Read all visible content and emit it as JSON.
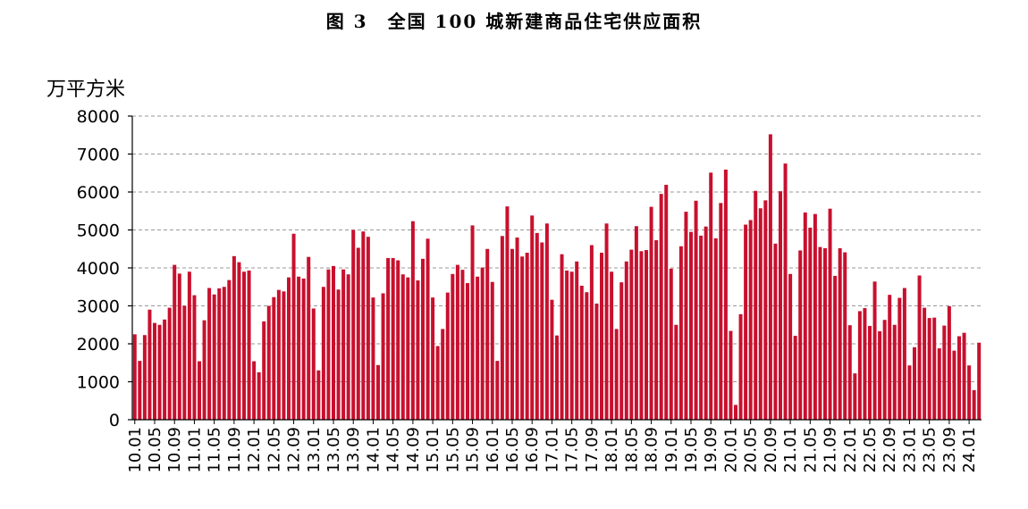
{
  "title": "图 3　全国 100 城新建商品住宅供应面积",
  "colors": {
    "bar": "#C8102E",
    "grid": "#999999",
    "axis": "#000000"
  },
  "chart_data": {
    "type": "bar",
    "title": "图 3　全国 100 城新建商品住宅供应面积",
    "ylabel": "万平方米",
    "xlabel": "",
    "ylim": [
      0,
      8000
    ],
    "yticks": [
      0,
      1000,
      2000,
      3000,
      4000,
      5000,
      6000,
      7000,
      8000
    ],
    "grid": "horizontal dashed",
    "x_tick_labels": [
      "10.01",
      "10.05",
      "10.09",
      "11.01",
      "11.05",
      "11.09",
      "12.01",
      "12.05",
      "12.09",
      "13.01",
      "13.05",
      "13.09",
      "14.01",
      "14.05",
      "14.09",
      "15.01",
      "15.05",
      "15.09",
      "16.01",
      "16.05",
      "16.09",
      "17.01",
      "17.05",
      "17.09",
      "18.01",
      "18.05",
      "18.09",
      "19.01",
      "19.05",
      "19.09",
      "20.01",
      "20.05",
      "20.09",
      "21.01",
      "21.05",
      "21.09",
      "22.01",
      "22.05",
      "22.09",
      "23.01",
      "23.05",
      "23.09",
      "24.01"
    ],
    "categories": [
      "10.01",
      "10.02",
      "10.03",
      "10.04",
      "10.05",
      "10.06",
      "10.07",
      "10.08",
      "10.09",
      "10.10",
      "10.11",
      "10.12",
      "11.01",
      "11.02",
      "11.03",
      "11.04",
      "11.05",
      "11.06",
      "11.07",
      "11.08",
      "11.09",
      "11.10",
      "11.11",
      "11.12",
      "12.01",
      "12.02",
      "12.03",
      "12.04",
      "12.05",
      "12.06",
      "12.07",
      "12.08",
      "12.09",
      "12.10",
      "12.11",
      "12.12",
      "13.01",
      "13.02",
      "13.03",
      "13.04",
      "13.05",
      "13.06",
      "13.07",
      "13.08",
      "13.09",
      "13.10",
      "13.11",
      "13.12",
      "14.01",
      "14.02",
      "14.03",
      "14.04",
      "14.05",
      "14.06",
      "14.07",
      "14.08",
      "14.09",
      "14.10",
      "14.11",
      "14.12",
      "15.01",
      "15.02",
      "15.03",
      "15.04",
      "15.05",
      "15.06",
      "15.07",
      "15.08",
      "15.09",
      "15.10",
      "15.11",
      "15.12",
      "16.01",
      "16.02",
      "16.03",
      "16.04",
      "16.05",
      "16.06",
      "16.07",
      "16.08",
      "16.09",
      "16.10",
      "16.11",
      "16.12",
      "17.01",
      "17.02",
      "17.03",
      "17.04",
      "17.05",
      "17.06",
      "17.07",
      "17.08",
      "17.09",
      "17.10",
      "17.11",
      "17.12",
      "18.01",
      "18.02",
      "18.03",
      "18.04",
      "18.05",
      "18.06",
      "18.07",
      "18.08",
      "18.09",
      "18.10",
      "18.11",
      "18.12",
      "19.01",
      "19.02",
      "19.03",
      "19.04",
      "19.05",
      "19.06",
      "19.07",
      "19.08",
      "19.09",
      "19.10",
      "19.11",
      "19.12",
      "20.01",
      "20.02",
      "20.03",
      "20.04",
      "20.05",
      "20.06",
      "20.07",
      "20.08",
      "20.09",
      "20.10",
      "20.11",
      "20.12",
      "21.01",
      "21.02",
      "21.03",
      "21.04",
      "21.05",
      "21.06",
      "21.07",
      "21.08",
      "21.09",
      "21.10",
      "21.11",
      "21.12",
      "22.01",
      "22.02",
      "22.03",
      "22.04",
      "22.05",
      "22.06",
      "22.07",
      "22.08",
      "22.09",
      "22.10",
      "22.11",
      "22.12",
      "23.01",
      "23.02",
      "23.03",
      "23.04",
      "23.05",
      "23.06",
      "23.07",
      "23.08",
      "23.09",
      "23.10",
      "23.11",
      "23.12",
      "24.01",
      "24.02",
      "24.03"
    ],
    "values": [
      2250,
      1550,
      2230,
      2900,
      2550,
      2500,
      2640,
      2950,
      4080,
      3850,
      3000,
      3900,
      3280,
      1540,
      2620,
      3470,
      3300,
      3460,
      3500,
      3680,
      4310,
      4150,
      3900,
      3930,
      1540,
      1250,
      2590,
      3000,
      3230,
      3420,
      3380,
      3750,
      4900,
      3770,
      3720,
      4290,
      2930,
      1300,
      3500,
      3960,
      4050,
      3430,
      3960,
      3830,
      5000,
      4530,
      4960,
      4820,
      3220,
      1440,
      3330,
      4260,
      4260,
      4200,
      3830,
      3750,
      5230,
      3670,
      4240,
      4770,
      3220,
      1940,
      2390,
      3350,
      3840,
      4080,
      3950,
      3600,
      5120,
      3770,
      4010,
      4500,
      3630,
      1550,
      4840,
      5620,
      4500,
      4800,
      4300,
      4400,
      5380,
      4920,
      4670,
      5170,
      3160,
      2220,
      4360,
      3930,
      3900,
      4170,
      3530,
      3360,
      4600,
      3060,
      4400,
      5170,
      3900,
      2390,
      3620,
      4170,
      4480,
      5100,
      4440,
      4470,
      5610,
      4730,
      5950,
      6190,
      3980,
      2500,
      4570,
      5480,
      4950,
      5770,
      4850,
      5090,
      6510,
      4780,
      5710,
      6590,
      2340,
      390,
      2780,
      5140,
      5260,
      6030,
      5570,
      5780,
      7520,
      4640,
      6020,
      6750,
      3840,
      2210,
      4460,
      5460,
      5060,
      5420,
      4550,
      4520,
      5560,
      3790,
      4520,
      4410,
      2490,
      1220,
      2860,
      2940,
      2470,
      3640,
      2330,
      2630,
      3290,
      2500,
      3210,
      3470,
      1430,
      1910,
      3800,
      2950,
      2680,
      2690,
      1880,
      2480,
      2990,
      1820,
      2200,
      2290,
      1430,
      780,
      2030
    ]
  }
}
